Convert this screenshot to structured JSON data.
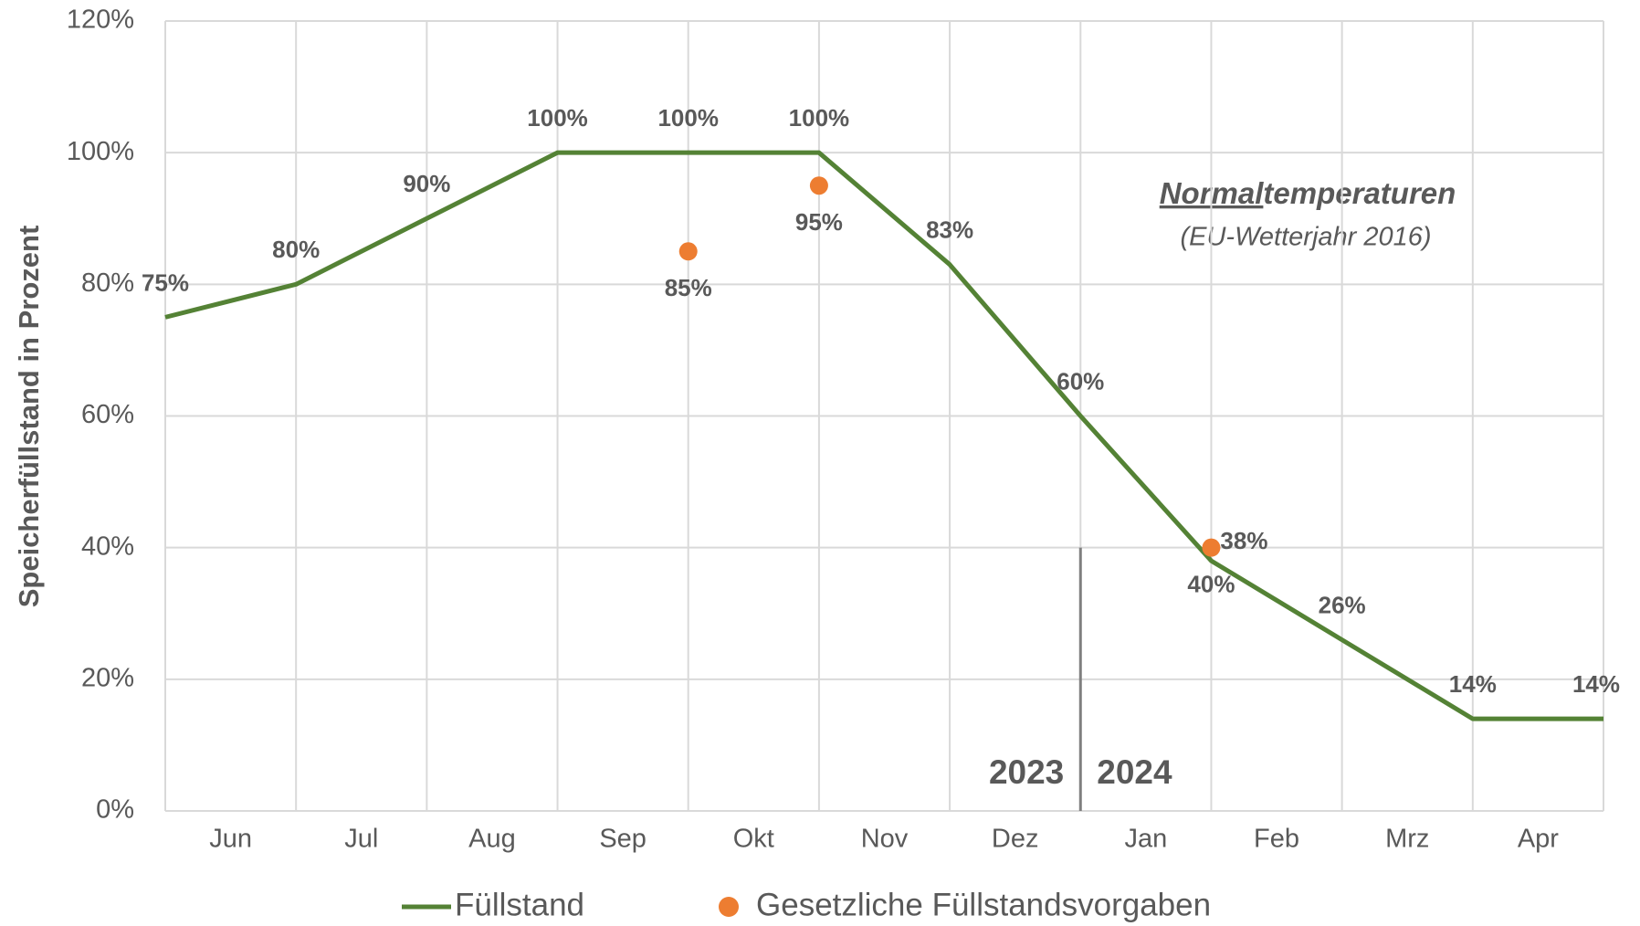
{
  "chart_data": {
    "type": "line",
    "y_label": "Speicherfüllstand in Prozent",
    "categories": [
      "Jun",
      "Jul",
      "Aug",
      "Sep",
      "Okt",
      "Nov",
      "Dez",
      "Jan",
      "Feb",
      "Mrz",
      "Apr"
    ],
    "xlim": [
      0,
      11
    ],
    "ylim": [
      0,
      120
    ],
    "yticks": [
      {
        "value": 0,
        "label": "0%"
      },
      {
        "value": 20,
        "label": "20%"
      },
      {
        "value": 40,
        "label": "40%"
      },
      {
        "value": 60,
        "label": "60%"
      },
      {
        "value": 80,
        "label": "80%"
      },
      {
        "value": 100,
        "label": "100%"
      },
      {
        "value": 120,
        "label": "120%"
      }
    ],
    "grid": true,
    "series": [
      {
        "name": "Füllstand",
        "color": "#548235",
        "kind": "line",
        "x": [
          0,
          1,
          2,
          3,
          4,
          5,
          6,
          7,
          8,
          9,
          10,
          11
        ],
        "values": [
          75,
          80,
          90,
          100,
          100,
          100,
          83,
          60,
          38,
          26,
          14,
          14
        ],
        "value_labels": [
          "75%",
          "80%",
          "90%",
          "100%",
          "100%",
          "100%",
          "83%",
          "60%",
          "38%",
          "26%",
          "14%",
          "14%"
        ]
      },
      {
        "name": "Gesetzliche Füllstandsvorgaben",
        "color": "#ed7d31",
        "kind": "scatter",
        "x": [
          4,
          5,
          8
        ],
        "values": [
          85,
          95,
          40
        ],
        "value_labels": [
          "85%",
          "95%",
          "40%"
        ]
      }
    ],
    "divider": {
      "x": 7,
      "top": 40,
      "left_label": "2023",
      "right_label": "2024"
    },
    "annotation": {
      "emphasis": "Normal",
      "rest": "temperaturen",
      "subtitle": "(EU-Wetterjahr 2016)"
    },
    "legend": "bottom"
  }
}
